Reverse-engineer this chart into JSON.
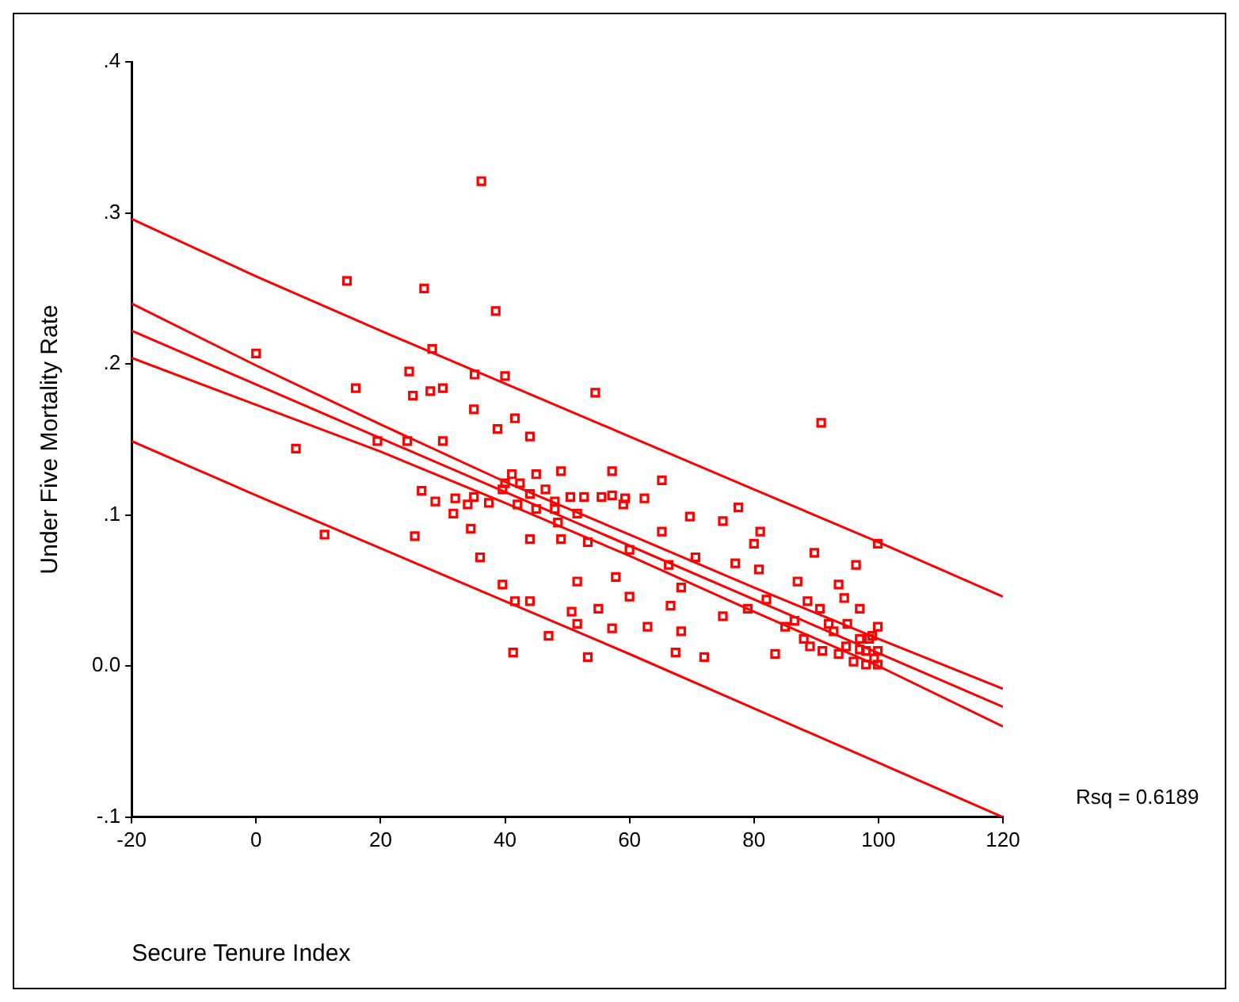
{
  "chart_data": {
    "type": "scatter",
    "xlabel": "Secure Tenure Index",
    "ylabel": "Under Five Mortality Rate",
    "annotations": [
      "Rsq = 0.6189"
    ],
    "xlim": [
      -20,
      120
    ],
    "xticks": [
      -20,
      0,
      20,
      40,
      60,
      80,
      100,
      120
    ],
    "ylim": [
      -0.1,
      0.4
    ],
    "yticks": [
      {
        "value": -0.1,
        "label": "-.1"
      },
      {
        "value": 0,
        "label": "0.0"
      },
      {
        "value": 0.1,
        "label": ".1"
      },
      {
        "value": 0.2,
        "label": ".2"
      },
      {
        "value": 0.3,
        "label": ".3"
      },
      {
        "value": 0.4,
        "label": ".4"
      }
    ],
    "grid": false,
    "legend": false,
    "series": [
      {
        "type": "scatter",
        "color": "#ff0000",
        "marker": "square",
        "x": [
          0,
          14.6,
          6.4,
          11,
          16,
          19.5,
          27,
          24.6,
          25.2,
          24.3,
          25.5,
          26.6,
          28,
          28.3,
          28.8,
          30,
          30,
          31.7,
          36.2,
          35.1,
          38.5,
          35,
          40,
          41.6,
          38.8,
          37.4,
          39.6,
          35,
          34.5,
          36,
          44,
          54.5,
          41.1,
          42.4,
          45,
          49,
          45,
          44,
          39.6,
          41.6,
          44,
          41.3,
          47,
          50.7,
          51.6,
          51.6,
          53.3,
          55,
          53.3,
          49,
          48.5,
          57.2,
          57.8,
          57.2,
          57.2,
          59,
          60,
          60,
          62.4,
          65.2,
          65.2,
          66.3,
          66.6,
          62.9,
          68.3,
          68.3,
          67.4,
          69.7,
          70.6,
          72,
          75,
          75,
          77,
          77.5,
          79,
          80,
          81,
          80.8,
          82,
          83.4,
          85,
          87,
          88.6,
          89,
          90.8,
          89.7,
          90.6,
          92,
          93.6,
          94.5,
          95,
          96.4,
          97,
          99.9,
          97,
          98.5,
          99.3,
          99.9,
          96,
          98,
          99,
          99.9,
          94.8,
          92.8,
          91,
          88,
          86.5,
          93.6,
          98,
          99.9,
          97,
          46.5,
          48,
          50.5,
          52.7,
          55.5,
          59.3,
          48,
          51.6,
          42,
          44,
          40,
          32,
          34
        ],
        "values": [
          0.207,
          0.255,
          0.144,
          0.087,
          0.184,
          0.149,
          0.25,
          0.195,
          0.179,
          0.149,
          0.086,
          0.116,
          0.182,
          0.21,
          0.109,
          0.184,
          0.149,
          0.101,
          0.321,
          0.193,
          0.235,
          0.17,
          0.192,
          0.164,
          0.157,
          0.108,
          0.117,
          0.112,
          0.091,
          0.072,
          0.152,
          0.181,
          0.127,
          0.121,
          0.127,
          0.129,
          0.104,
          0.084,
          0.054,
          0.043,
          0.043,
          0.009,
          0.02,
          0.036,
          0.056,
          0.028,
          0.006,
          0.038,
          0.082,
          0.084,
          0.095,
          0.025,
          0.059,
          0.129,
          0.113,
          0.107,
          0.077,
          0.046,
          0.111,
          0.123,
          0.089,
          0.067,
          0.04,
          0.026,
          0.052,
          0.023,
          0.009,
          0.099,
          0.072,
          0.006,
          0.033,
          0.096,
          0.068,
          0.105,
          0.038,
          0.081,
          0.089,
          0.064,
          0.044,
          0.008,
          0.026,
          0.056,
          0.043,
          0.013,
          0.161,
          0.075,
          0.038,
          0.028,
          0.054,
          0.045,
          0.028,
          0.067,
          0.038,
          0.081,
          0.011,
          0.018,
          0.005,
          0.026,
          0.003,
          0.001,
          0.02,
          0.01,
          0.013,
          0.023,
          0.01,
          0.018,
          0.03,
          0.008,
          0.01,
          0.001,
          0.018,
          0.117,
          0.109,
          0.112,
          0.112,
          0.112,
          0.111,
          0.104,
          0.101,
          0.107,
          0.114,
          0.121,
          0.111,
          0.107
        ]
      },
      {
        "type": "line",
        "color": "#ff0000",
        "marker": "none",
        "x": [
          -20,
          0,
          20,
          40,
          60,
          80,
          100,
          120
        ],
        "values": [
          0.296,
          0.258,
          0.222,
          0.187,
          0.152,
          0.117,
          0.082,
          0.046
        ]
      },
      {
        "type": "line",
        "color": "#ff0000",
        "marker": "none",
        "x": [
          -20,
          0,
          20,
          40,
          60,
          80,
          100,
          120
        ],
        "values": [
          0.24,
          0.199,
          0.16,
          0.122,
          0.087,
          0.052,
          0.018,
          -0.015
        ]
      },
      {
        "type": "line",
        "color": "#ff0000",
        "marker": "none",
        "x": [
          -20,
          120
        ],
        "values": [
          0.222,
          -0.027
        ]
      },
      {
        "type": "line",
        "color": "#ff0000",
        "marker": "none",
        "x": [
          -20,
          0,
          20,
          40,
          60,
          80,
          100,
          120
        ],
        "values": [
          0.204,
          0.173,
          0.142,
          0.108,
          0.073,
          0.036,
          0,
          -0.04
        ]
      },
      {
        "type": "line",
        "color": "#ff0000",
        "marker": "none",
        "x": [
          -20,
          0,
          20,
          40,
          60,
          80,
          100,
          120
        ],
        "values": [
          0.149,
          0.113,
          0.078,
          0.043,
          0.008,
          -0.028,
          -0.064,
          -0.1
        ]
      }
    ]
  }
}
